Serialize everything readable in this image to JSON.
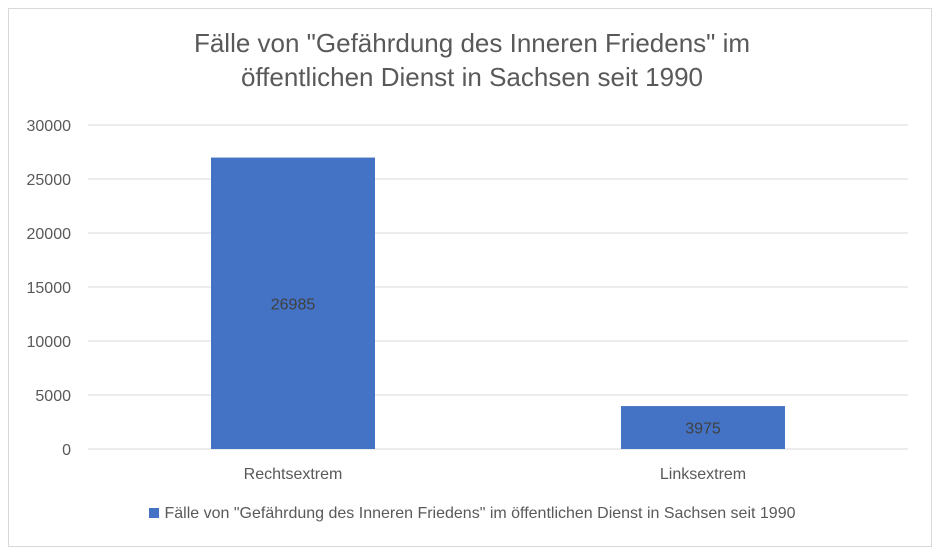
{
  "chart_data": {
    "type": "bar",
    "title_lines": [
      "Fälle von \"Gefährdung des Inneren Friedens\" im",
      "öffentlichen Dienst in Sachsen seit 1990"
    ],
    "categories": [
      "Rechtsextrem",
      "Linksextrem"
    ],
    "series": [
      {
        "name": "Fälle von \"Gefährdung des Inneren Friedens\" im öffentlichen Dienst in Sachsen seit 1990",
        "values": [
          26985,
          3975
        ],
        "data_labels": [
          "26985",
          "3975"
        ]
      }
    ],
    "ylim": [
      0,
      30000
    ],
    "yticks": [
      0,
      5000,
      10000,
      15000,
      20000,
      25000,
      30000
    ],
    "xlabel": "",
    "ylabel": "",
    "grid": true,
    "legend_position": "bottom",
    "colors": {
      "bar": "#4472c4",
      "grid": "#d9d9d9",
      "text": "#595959"
    }
  }
}
